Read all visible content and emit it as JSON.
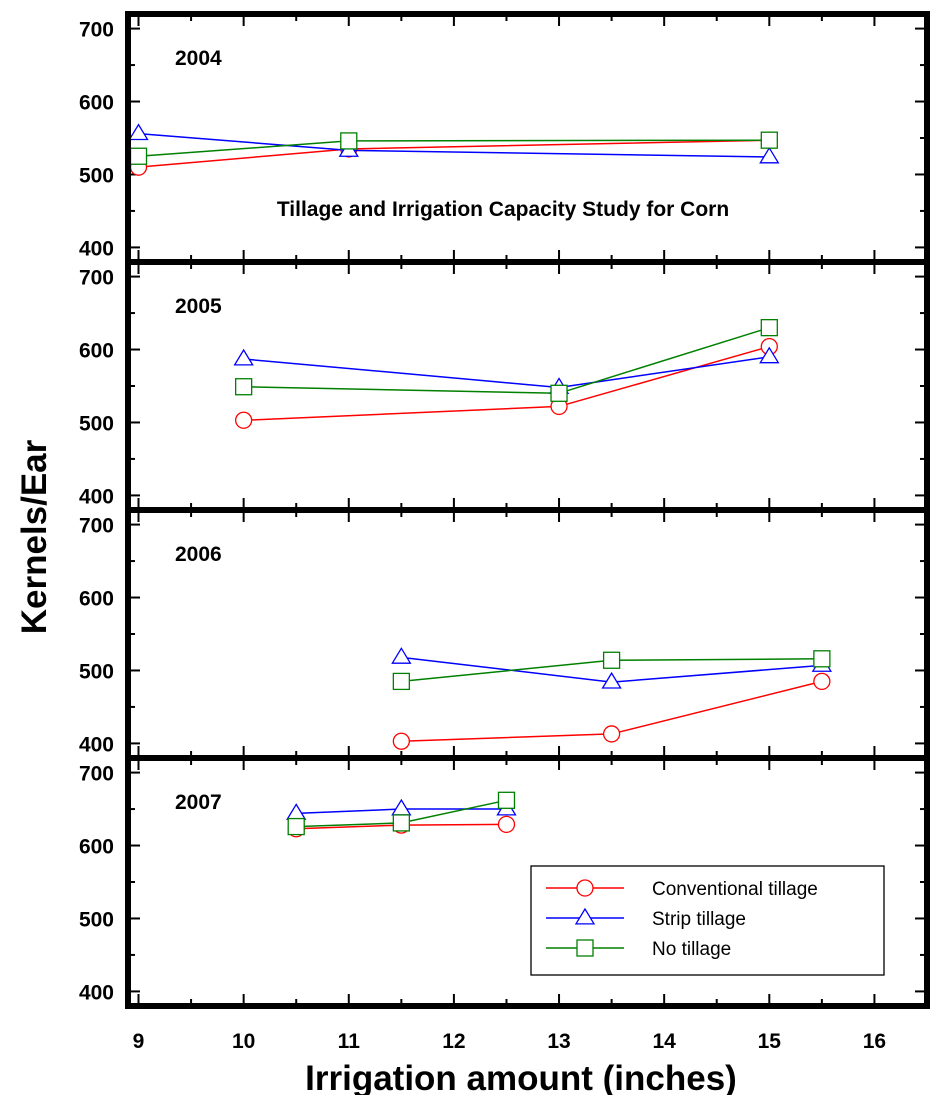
{
  "chart_data": {
    "type": "line",
    "title": "Tillage and Irrigation Capacity Study for Corn",
    "xlabel": "Irrigation amount (inches)",
    "ylabel": "Kernels/Ear",
    "xlim": [
      8.9,
      16.5
    ],
    "ylim": [
      380,
      720
    ],
    "x_ticks": [
      "9",
      "10",
      "11",
      "12",
      "13",
      "14",
      "15",
      "16"
    ],
    "y_ticks": [
      "400",
      "500",
      "600",
      "700"
    ],
    "grid": false,
    "legend_position": "bottom-right of last panel",
    "series_styles": [
      {
        "name": "Conventional tillage",
        "color": "#ff0000",
        "marker": "circle"
      },
      {
        "name": "Strip tillage",
        "color": "#0000ff",
        "marker": "triangle"
      },
      {
        "name": "No tillage",
        "color": "#008000",
        "marker": "square"
      }
    ],
    "panels": [
      {
        "label": "2004",
        "series": [
          {
            "name": "Conventional tillage",
            "x": [
              9,
              11,
              15
            ],
            "y": [
              510,
              535,
              547
            ]
          },
          {
            "name": "Strip tillage",
            "x": [
              9,
              11,
              15
            ],
            "y": [
              556,
              533,
              524
            ]
          },
          {
            "name": "No tillage",
            "x": [
              9,
              11,
              15
            ],
            "y": [
              525,
              546,
              547
            ]
          }
        ]
      },
      {
        "label": "2005",
        "series": [
          {
            "name": "Conventional tillage",
            "x": [
              10,
              13,
              15
            ],
            "y": [
              503,
              522,
              604
            ]
          },
          {
            "name": "Strip tillage",
            "x": [
              10,
              13,
              15
            ],
            "y": [
              587,
              548,
              590
            ]
          },
          {
            "name": "No tillage",
            "x": [
              10,
              13,
              15
            ],
            "y": [
              549,
              540,
              630
            ]
          }
        ]
      },
      {
        "label": "2006",
        "series": [
          {
            "name": "Conventional tillage",
            "x": [
              11.5,
              13.5,
              15.5
            ],
            "y": [
              403,
              413,
              485
            ]
          },
          {
            "name": "Strip tillage",
            "x": [
              11.5,
              13.5,
              15.5
            ],
            "y": [
              518,
              484,
              507
            ]
          },
          {
            "name": "No tillage",
            "x": [
              11.5,
              13.5,
              15.5
            ],
            "y": [
              485,
              514,
              516
            ]
          }
        ]
      },
      {
        "label": "2007",
        "series": [
          {
            "name": "Conventional tillage",
            "x": [
              10.5,
              11.5,
              12.5
            ],
            "y": [
              623,
              628,
              629
            ]
          },
          {
            "name": "Strip tillage",
            "x": [
              10.5,
              11.5,
              12.5
            ],
            "y": [
              644,
              650,
              650
            ]
          },
          {
            "name": "No tillage",
            "x": [
              10.5,
              11.5,
              12.5
            ],
            "y": [
              626,
              631,
              662
            ]
          }
        ]
      }
    ]
  }
}
